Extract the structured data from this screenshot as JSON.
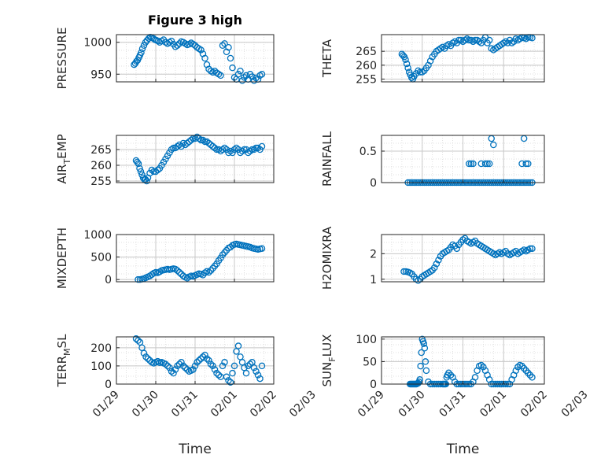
{
  "figure_title": "Figure 3 high",
  "colors": {
    "marker": "#0072BD",
    "axis": "#262626",
    "grid": "#b0b0b0"
  },
  "chart_data": [
    {
      "type": "scatter",
      "ylabel": "PRESSURE",
      "title": "Figure 3 high",
      "ylim": [
        938,
        1012
      ],
      "yticks": [
        950,
        1000
      ],
      "xlim": [
        0,
        4
      ],
      "grid": true,
      "x": [
        0.45,
        0.48,
        0.51,
        0.54,
        0.57,
        0.6,
        0.63,
        0.66,
        0.7,
        0.74,
        0.78,
        0.82,
        0.86,
        0.9,
        0.94,
        0.98,
        1.02,
        1.06,
        1.1,
        1.15,
        1.2,
        1.25,
        1.3,
        1.35,
        1.4,
        1.45,
        1.5,
        1.55,
        1.6,
        1.65,
        1.7,
        1.75,
        1.8,
        1.85,
        1.9,
        1.95,
        2.0,
        2.05,
        2.1,
        2.15,
        2.2,
        2.25,
        2.3,
        2.35,
        2.4,
        2.45,
        2.5,
        2.55,
        2.6,
        2.65,
        2.7,
        2.75,
        2.8,
        2.85,
        2.9,
        2.95,
        3.0,
        3.05,
        3.1,
        3.15,
        3.2,
        3.25,
        3.3,
        3.35,
        3.4,
        3.45,
        3.5,
        3.55,
        3.6,
        3.65,
        3.7
      ],
      "y": [
        965,
        967,
        970,
        972,
        976,
        980,
        984,
        990,
        995,
        1000,
        1003,
        1006,
        1008,
        1007,
        1006,
        1004,
        1003,
        1002,
        1000,
        1002,
        1004,
        1000,
        998,
        1000,
        1002,
        997,
        993,
        995,
        998,
        1001,
        1000,
        998,
        996,
        997,
        999,
        997,
        995,
        992,
        990,
        988,
        982,
        975,
        965,
        958,
        955,
        953,
        955,
        952,
        950,
        948,
        995,
        998,
        985,
        992,
        975,
        960,
        945,
        942,
        950,
        955,
        940,
        945,
        948,
        942,
        950,
        946,
        940,
        944,
        942,
        948,
        950
      ]
    },
    {
      "type": "scatter",
      "ylabel": "THETA",
      "ylim": [
        254,
        271
      ],
      "yticks": [
        255,
        260,
        265
      ],
      "xlim": [
        0,
        4
      ],
      "grid": true,
      "x": [
        0.5,
        0.53,
        0.56,
        0.59,
        0.62,
        0.65,
        0.68,
        0.71,
        0.74,
        0.77,
        0.8,
        0.85,
        0.9,
        0.95,
        1.0,
        1.05,
        1.1,
        1.15,
        1.2,
        1.25,
        1.3,
        1.35,
        1.4,
        1.45,
        1.5,
        1.55,
        1.6,
        1.65,
        1.7,
        1.75,
        1.8,
        1.85,
        1.9,
        1.95,
        2.0,
        2.05,
        2.1,
        2.15,
        2.2,
        2.25,
        2.3,
        2.35,
        2.4,
        2.45,
        2.5,
        2.55,
        2.6,
        2.65,
        2.7,
        2.75,
        2.8,
        2.85,
        2.9,
        2.95,
        3.0,
        3.05,
        3.1,
        3.15,
        3.2,
        3.25,
        3.3,
        3.35,
        3.4,
        3.45,
        3.5,
        3.55,
        3.6,
        3.65,
        3.7
      ],
      "y": [
        264,
        263.5,
        263,
        262,
        260.5,
        259,
        257.5,
        256.5,
        255.5,
        255,
        256,
        257,
        258,
        257.5,
        257.5,
        258,
        259,
        260,
        261.5,
        263,
        264,
        265,
        265.5,
        266,
        266.5,
        266,
        267,
        267.5,
        267,
        268,
        268.5,
        268,
        269,
        269,
        268.5,
        269,
        269.5,
        269,
        269,
        268.5,
        269,
        269,
        268.5,
        268,
        269,
        270,
        268,
        269,
        266,
        265.5,
        266,
        266.5,
        267,
        267.5,
        268,
        268.5,
        268,
        269,
        268,
        268.5,
        269.5,
        269,
        269.5,
        270,
        269.8,
        269.5,
        270,
        270,
        269.8
      ]
    },
    {
      "type": "scatter",
      "ylabel": "AIR_TEMP",
      "ylim": [
        254.5,
        269.5
      ],
      "yticks": [
        255,
        260,
        265
      ],
      "xlim": [
        0,
        4
      ],
      "grid": true,
      "x": [
        0.5,
        0.53,
        0.56,
        0.59,
        0.62,
        0.65,
        0.68,
        0.71,
        0.74,
        0.77,
        0.8,
        0.85,
        0.9,
        0.95,
        1.0,
        1.05,
        1.1,
        1.15,
        1.2,
        1.25,
        1.3,
        1.35,
        1.4,
        1.45,
        1.5,
        1.55,
        1.6,
        1.65,
        1.7,
        1.75,
        1.8,
        1.85,
        1.9,
        1.95,
        2.0,
        2.05,
        2.1,
        2.15,
        2.2,
        2.25,
        2.3,
        2.35,
        2.4,
        2.45,
        2.5,
        2.55,
        2.6,
        2.65,
        2.7,
        2.75,
        2.8,
        2.85,
        2.9,
        2.95,
        3.0,
        3.05,
        3.1,
        3.15,
        3.2,
        3.25,
        3.3,
        3.35,
        3.4,
        3.45,
        3.5,
        3.55,
        3.6,
        3.65,
        3.7
      ],
      "y": [
        261.5,
        261,
        260.5,
        259,
        258,
        257,
        256,
        255.5,
        255.5,
        255,
        256,
        257.5,
        258.5,
        258,
        258,
        258.5,
        259,
        260,
        261,
        262,
        263,
        264,
        265,
        265.5,
        265.5,
        266,
        266.5,
        266,
        267,
        266.5,
        267,
        267.5,
        268,
        268.5,
        268.5,
        269,
        268.5,
        268,
        268,
        267.5,
        267.5,
        267,
        266.5,
        266,
        265.5,
        265,
        265,
        264.5,
        265,
        265.5,
        265,
        264,
        264.5,
        264,
        265,
        265.5,
        265,
        264,
        264.5,
        265,
        265,
        264,
        264.5,
        265,
        265,
        265.5,
        265.5,
        265,
        266
      ]
    },
    {
      "type": "scatter",
      "ylabel": "RAINFALL",
      "ylim": [
        0,
        0.75
      ],
      "yticks": [
        0,
        0.5
      ],
      "xlim": [
        0,
        4
      ],
      "grid": true,
      "x": [
        0.65,
        0.7,
        0.75,
        0.8,
        0.85,
        0.9,
        0.95,
        1.0,
        1.05,
        1.1,
        1.15,
        1.2,
        1.25,
        1.3,
        1.35,
        1.4,
        1.45,
        1.5,
        1.55,
        1.6,
        1.65,
        1.7,
        1.75,
        1.8,
        1.85,
        1.9,
        1.95,
        2.0,
        2.05,
        2.1,
        2.15,
        2.2,
        2.25,
        2.3,
        2.35,
        2.4,
        2.45,
        2.5,
        2.55,
        2.6,
        2.65,
        2.7,
        2.75,
        2.8,
        2.85,
        2.9,
        2.95,
        3.0,
        3.05,
        3.1,
        3.15,
        3.2,
        3.25,
        3.3,
        3.35,
        3.4,
        3.45,
        3.5,
        3.55,
        3.6,
        3.65,
        3.7,
        2.15,
        2.2,
        2.25,
        2.45,
        2.55,
        2.6,
        2.65,
        2.7,
        2.75,
        3.45,
        3.5,
        3.55,
        3.6
      ],
      "y": [
        0,
        0,
        0,
        0,
        0,
        0,
        0,
        0,
        0,
        0,
        0,
        0,
        0,
        0,
        0,
        0,
        0,
        0,
        0,
        0,
        0,
        0,
        0,
        0,
        0,
        0,
        0,
        0,
        0,
        0,
        0,
        0,
        0,
        0,
        0,
        0,
        0,
        0,
        0,
        0,
        0,
        0,
        0,
        0,
        0,
        0,
        0,
        0,
        0,
        0,
        0,
        0,
        0,
        0,
        0,
        0,
        0,
        0,
        0,
        0,
        0,
        0,
        0.3,
        0.3,
        0.3,
        0.3,
        0.3,
        0.3,
        0.3,
        0.7,
        0.6,
        0.3,
        0.7,
        0.3,
        0.3
      ]
    },
    {
      "type": "scatter",
      "ylabel": "MIXDEPTH",
      "ylim": [
        -50,
        1000
      ],
      "yticks": [
        0,
        500,
        1000
      ],
      "xlim": [
        0,
        4
      ],
      "grid": true,
      "x": [
        0.55,
        0.6,
        0.65,
        0.7,
        0.75,
        0.8,
        0.85,
        0.9,
        0.95,
        1.0,
        1.05,
        1.1,
        1.15,
        1.2,
        1.25,
        1.3,
        1.35,
        1.4,
        1.45,
        1.5,
        1.55,
        1.6,
        1.65,
        1.7,
        1.75,
        1.8,
        1.85,
        1.9,
        1.95,
        2.0,
        2.05,
        2.1,
        2.15,
        2.2,
        2.25,
        2.3,
        2.35,
        2.4,
        2.45,
        2.5,
        2.55,
        2.6,
        2.65,
        2.7,
        2.75,
        2.8,
        2.85,
        2.9,
        2.95,
        3.0,
        3.05,
        3.1,
        3.15,
        3.2,
        3.25,
        3.3,
        3.35,
        3.4,
        3.45,
        3.5,
        3.55,
        3.6,
        3.65,
        3.7
      ],
      "y": [
        0,
        0,
        10,
        20,
        40,
        60,
        80,
        110,
        140,
        160,
        150,
        170,
        200,
        210,
        220,
        230,
        220,
        230,
        240,
        230,
        200,
        160,
        120,
        80,
        50,
        30,
        60,
        80,
        70,
        90,
        110,
        130,
        120,
        100,
        150,
        180,
        160,
        200,
        250,
        300,
        350,
        420,
        480,
        550,
        600,
        650,
        700,
        720,
        760,
        780,
        790,
        780,
        770,
        760,
        750,
        740,
        730,
        720,
        700,
        690,
        680,
        670,
        680,
        690
      ]
    },
    {
      "type": "scatter",
      "ylabel": "H2OMIXRA",
      "ylim": [
        0.9,
        2.75
      ],
      "yticks": [
        1,
        2
      ],
      "xlim": [
        0,
        4
      ],
      "grid": true,
      "x": [
        0.55,
        0.6,
        0.65,
        0.7,
        0.75,
        0.8,
        0.85,
        0.9,
        0.95,
        1.0,
        1.05,
        1.1,
        1.15,
        1.2,
        1.25,
        1.3,
        1.35,
        1.4,
        1.45,
        1.5,
        1.55,
        1.6,
        1.65,
        1.7,
        1.75,
        1.8,
        1.85,
        1.9,
        1.95,
        2.0,
        2.05,
        2.1,
        2.15,
        2.2,
        2.25,
        2.3,
        2.35,
        2.4,
        2.45,
        2.5,
        2.55,
        2.6,
        2.65,
        2.7,
        2.75,
        2.8,
        2.85,
        2.9,
        2.95,
        3.0,
        3.05,
        3.1,
        3.15,
        3.2,
        3.25,
        3.3,
        3.35,
        3.4,
        3.45,
        3.5,
        3.55,
        3.6,
        3.65,
        3.7
      ],
      "y": [
        1.3,
        1.3,
        1.28,
        1.25,
        1.2,
        1.1,
        1.0,
        0.95,
        1.0,
        1.1,
        1.15,
        1.2,
        1.25,
        1.3,
        1.35,
        1.45,
        1.6,
        1.75,
        1.9,
        2.0,
        2.05,
        2.1,
        2.15,
        2.25,
        2.35,
        2.3,
        2.2,
        2.35,
        2.45,
        2.55,
        2.6,
        2.5,
        2.45,
        2.4,
        2.45,
        2.5,
        2.4,
        2.35,
        2.3,
        2.25,
        2.2,
        2.15,
        2.1,
        2.05,
        2.0,
        1.95,
        2.0,
        2.05,
        2.0,
        2.05,
        2.1,
        2.0,
        1.95,
        2.0,
        2.05,
        2.1,
        2.0,
        2.05,
        2.1,
        2.15,
        2.1,
        2.15,
        2.2,
        2.2
      ]
    },
    {
      "type": "scatter",
      "ylabel": "TERR_MSL",
      "ylim": [
        0,
        260
      ],
      "yticks": [
        0,
        100,
        200
      ],
      "xlim": [
        0,
        4
      ],
      "grid": true,
      "x": [
        0.5,
        0.55,
        0.6,
        0.65,
        0.7,
        0.75,
        0.8,
        0.85,
        0.9,
        0.95,
        1.0,
        1.05,
        1.1,
        1.15,
        1.2,
        1.25,
        1.3,
        1.35,
        1.4,
        1.45,
        1.5,
        1.55,
        1.6,
        1.65,
        1.7,
        1.75,
        1.8,
        1.85,
        1.9,
        1.95,
        2.0,
        2.05,
        2.1,
        2.15,
        2.2,
        2.25,
        2.3,
        2.35,
        2.4,
        2.45,
        2.5,
        2.55,
        2.6,
        2.65,
        2.7,
        2.75,
        2.8,
        2.85,
        2.9,
        2.95,
        3.0,
        3.05,
        3.1,
        3.15,
        3.2,
        3.25,
        3.3,
        3.35,
        3.4,
        3.45,
        3.5,
        3.55,
        3.6,
        3.65,
        3.7
      ],
      "y": [
        250,
        240,
        230,
        200,
        170,
        150,
        140,
        130,
        120,
        115,
        120,
        125,
        118,
        120,
        115,
        110,
        100,
        90,
        70,
        60,
        80,
        100,
        110,
        120,
        100,
        90,
        80,
        70,
        75,
        80,
        100,
        120,
        130,
        140,
        150,
        160,
        140,
        130,
        110,
        100,
        80,
        60,
        50,
        40,
        100,
        120,
        40,
        20,
        10,
        60,
        100,
        180,
        210,
        150,
        120,
        90,
        60,
        100,
        110,
        120,
        90,
        70,
        50,
        30,
        100
      ]
    },
    {
      "type": "scatter",
      "ylabel": "SUN_FLUX",
      "ylim": [
        0,
        105
      ],
      "yticks": [
        0,
        50,
        100
      ],
      "xlim": [
        0,
        4
      ],
      "grid": true,
      "x": [
        0.7,
        0.72,
        0.74,
        0.76,
        0.78,
        0.8,
        0.82,
        0.84,
        0.86,
        0.88,
        0.9,
        0.92,
        0.94,
        0.96,
        0.98,
        1.0,
        1.02,
        1.04,
        1.06,
        1.08,
        1.1,
        1.15,
        1.2,
        1.25,
        1.3,
        1.35,
        1.4,
        1.45,
        1.5,
        1.52,
        1.54,
        1.56,
        1.58,
        1.6,
        1.62,
        1.65,
        1.7,
        1.75,
        1.8,
        1.85,
        1.9,
        1.95,
        2.0,
        2.05,
        2.1,
        2.15,
        2.2,
        2.25,
        2.3,
        2.35,
        2.4,
        2.45,
        2.5,
        2.55,
        2.6,
        2.65,
        2.7,
        2.75,
        2.8,
        2.85,
        2.9,
        2.95,
        3.0,
        3.05,
        3.1,
        3.15,
        3.2,
        3.25,
        3.3,
        3.35,
        3.4,
        3.45,
        3.5,
        3.55,
        3.6,
        3.65,
        3.7
      ],
      "y": [
        0,
        0,
        0,
        0,
        0,
        0,
        0,
        0,
        0,
        1,
        2,
        5,
        10,
        40,
        70,
        100,
        95,
        90,
        80,
        50,
        30,
        5,
        0,
        0,
        0,
        0,
        0,
        0,
        0,
        0,
        0,
        0,
        0,
        15,
        20,
        25,
        20,
        15,
        5,
        0,
        0,
        0,
        0,
        0,
        0,
        0,
        0,
        5,
        15,
        30,
        40,
        42,
        38,
        30,
        20,
        10,
        0,
        0,
        0,
        0,
        0,
        0,
        0,
        0,
        0,
        0,
        10,
        20,
        30,
        38,
        42,
        40,
        35,
        30,
        25,
        20,
        15
      ]
    }
  ],
  "xticks": [
    "01/29",
    "01/30",
    "01/31",
    "02/01",
    "02/02",
    "02/03"
  ],
  "xlabel": "Time"
}
